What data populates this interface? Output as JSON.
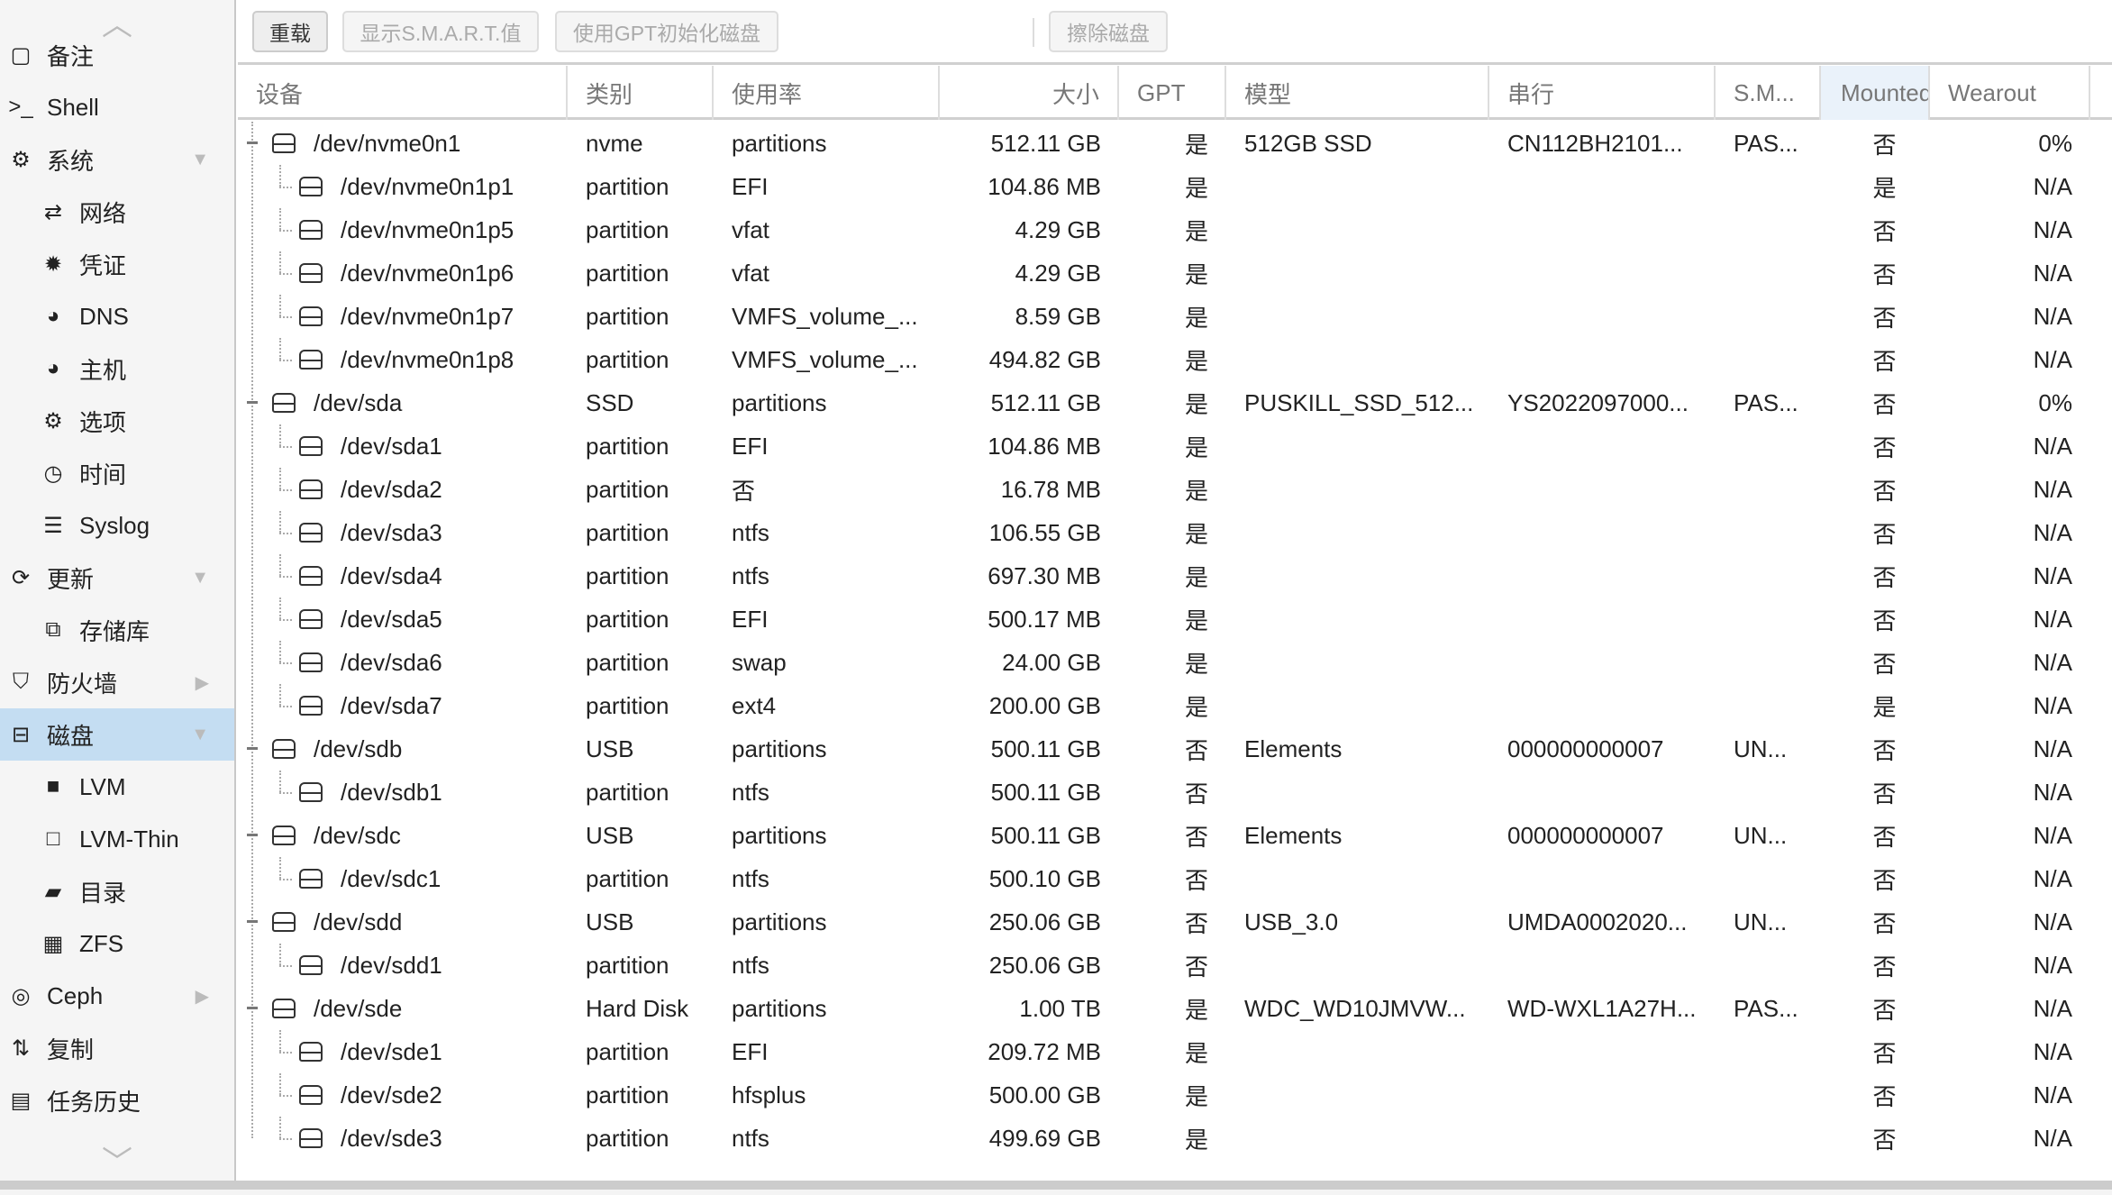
{
  "sidebar": {
    "items": [
      {
        "icon": "note-icon",
        "glyph": "▢",
        "label": "备注",
        "level": 0
      },
      {
        "icon": "terminal-icon",
        "glyph": ">_",
        "label": "Shell",
        "level": 0
      },
      {
        "icon": "cogs-icon",
        "glyph": "⚙",
        "label": "系统",
        "level": 0,
        "expander": "▼"
      },
      {
        "icon": "exchange-icon",
        "glyph": "⇄",
        "label": "网络",
        "level": 1
      },
      {
        "icon": "certificate-icon",
        "glyph": "✹",
        "label": "凭证",
        "level": 1
      },
      {
        "icon": "globe-icon",
        "glyph": "◕",
        "label": "DNS",
        "level": 1
      },
      {
        "icon": "globe-icon",
        "glyph": "◕",
        "label": "主机",
        "level": 1
      },
      {
        "icon": "gear-icon",
        "glyph": "⚙",
        "label": "选项",
        "level": 1
      },
      {
        "icon": "clock-icon",
        "glyph": "◷",
        "label": "时间",
        "level": 1
      },
      {
        "icon": "list-icon",
        "glyph": "☰",
        "label": "Syslog",
        "level": 1
      },
      {
        "icon": "refresh-icon",
        "glyph": "⟳",
        "label": "更新",
        "level": 0,
        "expander": "▼"
      },
      {
        "icon": "repository-icon",
        "glyph": "⧉",
        "label": "存储库",
        "level": 1
      },
      {
        "icon": "shield-icon",
        "glyph": "⛉",
        "label": "防火墙",
        "level": 0,
        "expander": "▶"
      },
      {
        "icon": "hdd-icon",
        "glyph": "⊟",
        "label": "磁盘",
        "level": 0,
        "expander": "▼",
        "selected": true
      },
      {
        "icon": "square-icon",
        "glyph": "■",
        "label": "LVM",
        "level": 1
      },
      {
        "icon": "square-outline-icon",
        "glyph": "□",
        "label": "LVM-Thin",
        "level": 1
      },
      {
        "icon": "folder-icon",
        "glyph": "▰",
        "label": "目录",
        "level": 1
      },
      {
        "icon": "th-large-icon",
        "glyph": "▦",
        "label": "ZFS",
        "level": 1
      },
      {
        "icon": "ceph-icon",
        "glyph": "◎",
        "label": "Ceph",
        "level": 0,
        "expander": "▶"
      },
      {
        "icon": "retweet-icon",
        "glyph": "⇅",
        "label": "复制",
        "level": 0
      },
      {
        "icon": "list-alt-icon",
        "glyph": "▤",
        "label": "任务历史",
        "level": 0
      }
    ]
  },
  "toolbar": {
    "reload": "重载",
    "smart": "显示S.M.A.R.T.值",
    "gpt_init": "使用GPT初始化磁盘",
    "wipe": "擦除磁盘"
  },
  "columns": [
    "设备",
    "类别",
    "使用率",
    "大小",
    "GPT",
    "模型",
    "串行",
    "S.M...",
    "Mounted",
    "Wearout"
  ],
  "rows": [
    [
      "/dev/nvme0n1",
      "nvme",
      "partitions",
      "512.11 GB",
      "是",
      "512GB SSD",
      "CN112BH2101...",
      "PAS...",
      "否",
      "0%",
      0
    ],
    [
      "/dev/nvme0n1p1",
      "partition",
      "EFI",
      "104.86 MB",
      "是",
      "",
      "",
      "",
      "是",
      "N/A",
      1
    ],
    [
      "/dev/nvme0n1p5",
      "partition",
      "vfat",
      "4.29 GB",
      "是",
      "",
      "",
      "",
      "否",
      "N/A",
      1
    ],
    [
      "/dev/nvme0n1p6",
      "partition",
      "vfat",
      "4.29 GB",
      "是",
      "",
      "",
      "",
      "否",
      "N/A",
      1
    ],
    [
      "/dev/nvme0n1p7",
      "partition",
      "VMFS_volume_...",
      "8.59 GB",
      "是",
      "",
      "",
      "",
      "否",
      "N/A",
      1
    ],
    [
      "/dev/nvme0n1p8",
      "partition",
      "VMFS_volume_...",
      "494.82 GB",
      "是",
      "",
      "",
      "",
      "否",
      "N/A",
      1
    ],
    [
      "/dev/sda",
      "SSD",
      "partitions",
      "512.11 GB",
      "是",
      "PUSKILL_SSD_512...",
      "YS2022097000...",
      "PAS...",
      "否",
      "0%",
      0
    ],
    [
      "/dev/sda1",
      "partition",
      "EFI",
      "104.86 MB",
      "是",
      "",
      "",
      "",
      "否",
      "N/A",
      1
    ],
    [
      "/dev/sda2",
      "partition",
      "否",
      "16.78 MB",
      "是",
      "",
      "",
      "",
      "否",
      "N/A",
      1
    ],
    [
      "/dev/sda3",
      "partition",
      "ntfs",
      "106.55 GB",
      "是",
      "",
      "",
      "",
      "否",
      "N/A",
      1
    ],
    [
      "/dev/sda4",
      "partition",
      "ntfs",
      "697.30 MB",
      "是",
      "",
      "",
      "",
      "否",
      "N/A",
      1
    ],
    [
      "/dev/sda5",
      "partition",
      "EFI",
      "500.17 MB",
      "是",
      "",
      "",
      "",
      "否",
      "N/A",
      1
    ],
    [
      "/dev/sda6",
      "partition",
      "swap",
      "24.00 GB",
      "是",
      "",
      "",
      "",
      "否",
      "N/A",
      1
    ],
    [
      "/dev/sda7",
      "partition",
      "ext4",
      "200.00 GB",
      "是",
      "",
      "",
      "",
      "是",
      "N/A",
      1
    ],
    [
      "/dev/sdb",
      "USB",
      "partitions",
      "500.11 GB",
      "否",
      "Elements",
      "000000000007",
      "UN...",
      "否",
      "N/A",
      0
    ],
    [
      "/dev/sdb1",
      "partition",
      "ntfs",
      "500.11 GB",
      "否",
      "",
      "",
      "",
      "否",
      "N/A",
      1
    ],
    [
      "/dev/sdc",
      "USB",
      "partitions",
      "500.11 GB",
      "否",
      "Elements",
      "000000000007",
      "UN...",
      "否",
      "N/A",
      0
    ],
    [
      "/dev/sdc1",
      "partition",
      "ntfs",
      "500.10 GB",
      "否",
      "",
      "",
      "",
      "否",
      "N/A",
      1
    ],
    [
      "/dev/sdd",
      "USB",
      "partitions",
      "250.06 GB",
      "否",
      "USB_3.0",
      "UMDA0002020...",
      "UN...",
      "否",
      "N/A",
      0
    ],
    [
      "/dev/sdd1",
      "partition",
      "ntfs",
      "250.06 GB",
      "否",
      "",
      "",
      "",
      "否",
      "N/A",
      1
    ],
    [
      "/dev/sde",
      "Hard Disk",
      "partitions",
      "1.00 TB",
      "是",
      "WDC_WD10JMVW...",
      "WD-WXL1A27H...",
      "PAS...",
      "否",
      "N/A",
      0
    ],
    [
      "/dev/sde1",
      "partition",
      "EFI",
      "209.72 MB",
      "是",
      "",
      "",
      "",
      "否",
      "N/A",
      1
    ],
    [
      "/dev/sde2",
      "partition",
      "hfsplus",
      "500.00 GB",
      "是",
      "",
      "",
      "",
      "否",
      "N/A",
      1
    ],
    [
      "/dev/sde3",
      "partition",
      "ntfs",
      "499.69 GB",
      "是",
      "",
      "",
      "",
      "否",
      "N/A",
      1
    ]
  ]
}
